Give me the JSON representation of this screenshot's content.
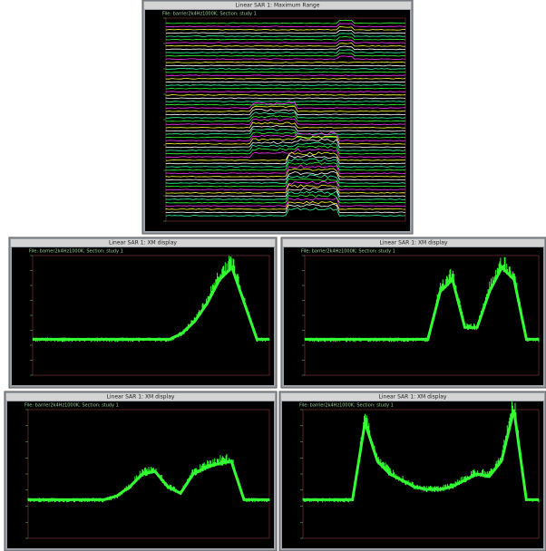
{
  "windows": [
    {
      "title": "Linear SAR 1: Maximum Range",
      "header": "File: barrier2k4Hz1000K; Section: study 1"
    },
    {
      "title": "Linear SAR 1: XM display",
      "header": "File: barrier2k4Hz1000K; Section: study 1",
      "trace": [
        3,
        3,
        3,
        3,
        3,
        3,
        3,
        3,
        3,
        3,
        3,
        3,
        3.5,
        4.5,
        6,
        8,
        9,
        6,
        3,
        3
      ]
    },
    {
      "title": "Linear SAR 1: XM display",
      "header": "File: barrier2k4Hz1000K; Section: study 1",
      "trace": [
        3,
        3,
        3,
        3,
        3,
        3,
        3,
        3,
        3,
        3,
        3,
        7,
        8,
        4,
        4,
        7,
        9,
        8,
        3,
        3
      ]
    },
    {
      "title": "Linear SAR 1: XM display",
      "header": "File: barrier2k4Hz1000K; Section: study 1",
      "trace": [
        3,
        3,
        3,
        3,
        3,
        3,
        3,
        3.3,
        4,
        5,
        5.2,
        4,
        3.5,
        5,
        5.5,
        5.8,
        6,
        3,
        3,
        3
      ]
    },
    {
      "title": "Linear SAR 1: XM display",
      "header": "File: barrier2k4Hz1000K; Section: study 1",
      "trace": [
        3,
        3,
        3,
        3,
        3,
        9,
        6,
        5,
        4.5,
        4,
        3.8,
        3.8,
        4,
        4.5,
        5,
        4.8,
        6,
        10,
        3,
        3
      ]
    }
  ]
}
